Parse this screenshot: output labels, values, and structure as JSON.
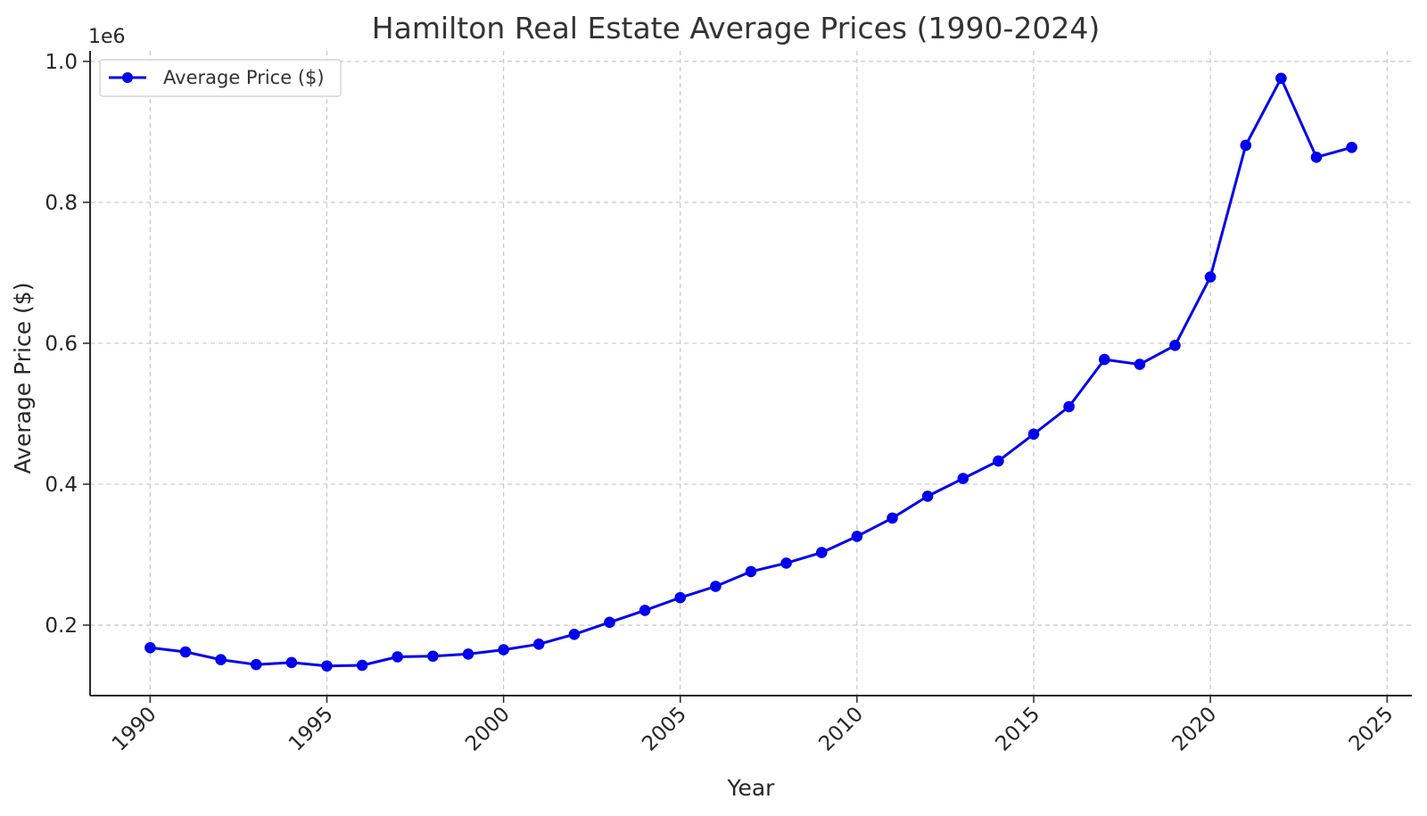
{
  "chart_data": {
    "type": "line",
    "title": "Hamilton Real Estate Average Prices (1990-2024)",
    "xlabel": "Year",
    "ylabel": "Average Price ($)",
    "y_offset_label": "1e6",
    "xlim": [
      1988.3,
      2025.7
    ],
    "ylim": [
      100000,
      1015000
    ],
    "x_ticks": [
      1990,
      1995,
      2000,
      2005,
      2010,
      2015,
      2020,
      2025
    ],
    "x_tick_labels": [
      "1990",
      "1995",
      "2000",
      "2005",
      "2010",
      "2015",
      "2020",
      "2025"
    ],
    "y_ticks": [
      200000,
      400000,
      600000,
      800000,
      1000000
    ],
    "y_tick_labels": [
      "0.2",
      "0.4",
      "0.6",
      "0.8",
      "1.0"
    ],
    "grid": true,
    "legend_position": "top-left",
    "series": [
      {
        "name": "Average Price ($)",
        "color": "#0000ee",
        "marker": "circle",
        "x": [
          1990,
          1991,
          1992,
          1993,
          1994,
          1995,
          1996,
          1997,
          1998,
          1999,
          2000,
          2001,
          2002,
          2003,
          2004,
          2005,
          2006,
          2007,
          2008,
          2009,
          2010,
          2011,
          2012,
          2013,
          2014,
          2015,
          2016,
          2017,
          2018,
          2019,
          2020,
          2021,
          2022,
          2023,
          2024
        ],
        "y": [
          168000,
          162000,
          151000,
          144000,
          147000,
          142000,
          143000,
          155000,
          156000,
          159000,
          165000,
          173000,
          187000,
          204000,
          221000,
          239000,
          255000,
          276000,
          288000,
          303000,
          326000,
          352000,
          383000,
          408000,
          433000,
          471000,
          510000,
          577000,
          570000,
          597000,
          694000,
          881000,
          976000,
          864000,
          878000
        ]
      }
    ]
  }
}
